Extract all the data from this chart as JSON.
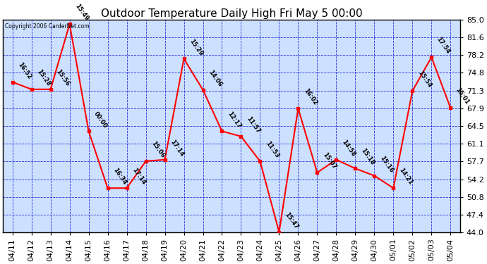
{
  "title": "Outdoor Temperature Daily High Fri May 5 00:00",
  "copyright": "Copyright 2006 CarderNet.com",
  "x_labels": [
    "04/11",
    "04/12",
    "04/13",
    "04/14",
    "04/15",
    "04/16",
    "04/17",
    "04/18",
    "04/19",
    "04/20",
    "04/21",
    "04/22",
    "04/23",
    "04/24",
    "04/25",
    "04/26",
    "04/27",
    "04/28",
    "04/29",
    "04/30",
    "05/01",
    "05/02",
    "05/03",
    "05/04"
  ],
  "y_values": [
    73.0,
    71.6,
    71.6,
    84.2,
    63.5,
    52.5,
    52.5,
    57.7,
    58.0,
    77.5,
    71.5,
    63.5,
    62.5,
    57.7,
    44.0,
    67.9,
    55.5,
    58.0,
    56.3,
    54.9,
    52.5,
    71.3,
    77.8,
    68.0
  ],
  "point_labels": [
    "16:52",
    "15:28",
    "15:56",
    "15:49",
    "00:00",
    "16:34",
    "17:14",
    "15:06",
    "17:14",
    "15:29",
    "14:06",
    "12:17",
    "11:57",
    "11:53",
    "15:47",
    "16:02",
    "15:07",
    "14:58",
    "15:18",
    "15:16",
    "14:21",
    "15:54",
    "17:54",
    "15:01"
  ],
  "ylim_min": 44.0,
  "ylim_max": 85.0,
  "yticks": [
    44.0,
    47.4,
    50.8,
    54.2,
    57.7,
    61.1,
    64.5,
    67.9,
    71.3,
    74.8,
    78.2,
    81.6,
    85.0
  ],
  "line_color": "red",
  "marker_color": "red",
  "bg_color": "#ffffff",
  "plot_bg_color": "#cce0ff",
  "grid_color": "#0000cc",
  "label_color": "black",
  "title_fontsize": 11,
  "label_fontsize": 6.5,
  "tick_fontsize": 8,
  "border_color": "black"
}
